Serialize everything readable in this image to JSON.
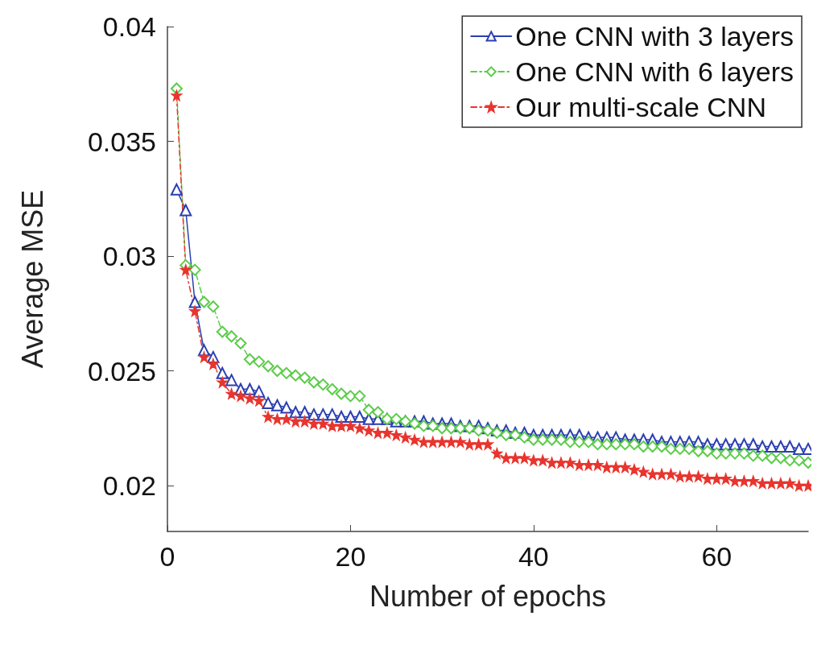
{
  "chart_data": {
    "type": "line",
    "xlabel": "Number of epochs",
    "ylabel": "Average MSE",
    "x": [
      1,
      2,
      3,
      4,
      5,
      6,
      7,
      8,
      9,
      10,
      11,
      12,
      13,
      14,
      15,
      16,
      17,
      18,
      19,
      20,
      21,
      22,
      23,
      24,
      25,
      26,
      27,
      28,
      29,
      30,
      31,
      32,
      33,
      34,
      35,
      36,
      37,
      38,
      39,
      40,
      41,
      42,
      43,
      44,
      45,
      46,
      47,
      48,
      49,
      50,
      51,
      52,
      53,
      54,
      55,
      56,
      57,
      58,
      59,
      60,
      61,
      62,
      63,
      64,
      65,
      66,
      67,
      68,
      69,
      70
    ],
    "series": [
      {
        "name": "One CNN with 3 layers",
        "color": "#2b3fb0",
        "marker": "triangle",
        "line_style": "solid",
        "values": [
          0.0329,
          0.032,
          0.028,
          0.0259,
          0.0256,
          0.0249,
          0.0246,
          0.0242,
          0.0242,
          0.0241,
          0.0236,
          0.0235,
          0.0234,
          0.0232,
          0.0232,
          0.0231,
          0.0231,
          0.0231,
          0.023,
          0.023,
          0.023,
          0.0229,
          0.0229,
          0.0229,
          0.0228,
          0.0228,
          0.0228,
          0.0228,
          0.0227,
          0.0227,
          0.0227,
          0.0226,
          0.0226,
          0.0226,
          0.0225,
          0.0224,
          0.0224,
          0.0223,
          0.0223,
          0.0222,
          0.0222,
          0.0222,
          0.0222,
          0.0222,
          0.0222,
          0.0221,
          0.0221,
          0.0221,
          0.0221,
          0.022,
          0.022,
          0.022,
          0.022,
          0.0219,
          0.0219,
          0.0219,
          0.0219,
          0.0219,
          0.0218,
          0.0218,
          0.0218,
          0.0218,
          0.0218,
          0.0218,
          0.0217,
          0.0217,
          0.0217,
          0.0217,
          0.0216,
          0.0216
        ]
      },
      {
        "name": "One CNN with 6 layers",
        "color": "#5ccc4a",
        "marker": "diamond",
        "line_style": "dashed",
        "values": [
          0.0373,
          0.0296,
          0.0294,
          0.028,
          0.0278,
          0.0267,
          0.0265,
          0.0262,
          0.0255,
          0.0254,
          0.0252,
          0.025,
          0.0249,
          0.0248,
          0.0247,
          0.0245,
          0.0244,
          0.0242,
          0.024,
          0.0239,
          0.0239,
          0.0233,
          0.0232,
          0.0229,
          0.0229,
          0.0228,
          0.0227,
          0.0226,
          0.0226,
          0.0225,
          0.0225,
          0.0225,
          0.0225,
          0.0224,
          0.0224,
          0.0223,
          0.0222,
          0.0222,
          0.0221,
          0.022,
          0.022,
          0.022,
          0.022,
          0.0219,
          0.0219,
          0.0219,
          0.0218,
          0.0218,
          0.0218,
          0.0218,
          0.0218,
          0.0217,
          0.0217,
          0.0217,
          0.0216,
          0.0216,
          0.0216,
          0.0215,
          0.0215,
          0.0214,
          0.0214,
          0.0214,
          0.0214,
          0.0213,
          0.0213,
          0.0212,
          0.0212,
          0.0211,
          0.0211,
          0.021
        ]
      },
      {
        "name": "Our multi-scale CNN",
        "color": "#e8352e",
        "marker": "star",
        "line_style": "dashed",
        "values": [
          0.037,
          0.0294,
          0.0276,
          0.0256,
          0.0253,
          0.0245,
          0.024,
          0.0239,
          0.0238,
          0.0237,
          0.023,
          0.0229,
          0.0229,
          0.0228,
          0.0228,
          0.0227,
          0.0227,
          0.0226,
          0.0226,
          0.0226,
          0.0225,
          0.0224,
          0.0223,
          0.0223,
          0.0222,
          0.0221,
          0.022,
          0.0219,
          0.0219,
          0.0219,
          0.0219,
          0.0219,
          0.0218,
          0.0218,
          0.0218,
          0.0214,
          0.0212,
          0.0212,
          0.0212,
          0.0211,
          0.0211,
          0.021,
          0.021,
          0.021,
          0.0209,
          0.0209,
          0.0209,
          0.0208,
          0.0208,
          0.0208,
          0.0207,
          0.0206,
          0.0205,
          0.0205,
          0.0205,
          0.0204,
          0.0204,
          0.0204,
          0.0203,
          0.0203,
          0.0203,
          0.0202,
          0.0202,
          0.0202,
          0.0201,
          0.0201,
          0.0201,
          0.0201,
          0.02,
          0.02
        ]
      }
    ],
    "xlim": [
      0,
      70
    ],
    "xticks": [
      0,
      20,
      40,
      60
    ],
    "ylim": [
      0.018,
      0.04
    ],
    "yticks": [
      {
        "value": 0.02,
        "label": "0.02"
      },
      0.025,
      {
        "value": 0.03,
        "label": "0.03"
      },
      0.035,
      {
        "value": 0.04,
        "label": "0.04"
      }
    ],
    "legend": "top right"
  }
}
